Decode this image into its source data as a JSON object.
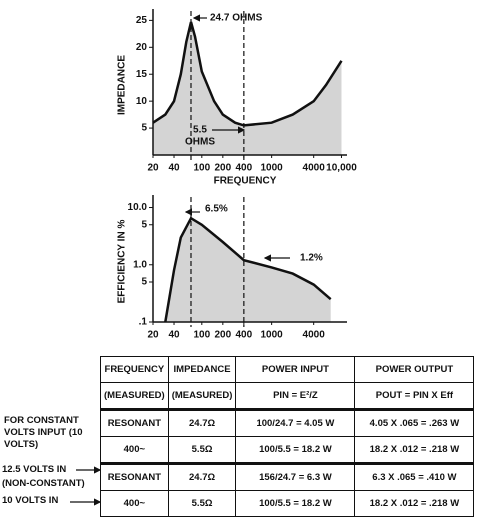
{
  "chart_data": [
    {
      "type": "line",
      "y_label": "IMPEDANCE",
      "x_label": "FREQUENCY",
      "log_x": true,
      "log_y": false,
      "xlim": [
        20,
        12000
      ],
      "ylim": [
        0,
        26
      ],
      "xticks": [
        20,
        40,
        100,
        200,
        400,
        1000,
        4000,
        {
          "value": 10000,
          "label": "10,000"
        }
      ],
      "yticks": [
        5,
        10,
        15,
        20,
        25
      ],
      "x": [
        20,
        30,
        40,
        50,
        60,
        70,
        80,
        100,
        150,
        200,
        300,
        400,
        1000,
        2000,
        4000,
        6000,
        10000
      ],
      "values": [
        6,
        7.5,
        10,
        15,
        21,
        24.7,
        22,
        15.5,
        10,
        7.5,
        6,
        5.5,
        6,
        7.5,
        10,
        13,
        17.5
      ],
      "color": "#111111",
      "fill": "#d4d4d4",
      "reference_lines_x": [
        70,
        400
      ],
      "annotations": [
        "24.7 OHMS",
        "5.5",
        "OHMS"
      ]
    },
    {
      "type": "line",
      "y_label": "EFFICIENCY IN %",
      "log_x": true,
      "log_y": true,
      "xlim": [
        20,
        12000
      ],
      "ylim": [
        0.1,
        13
      ],
      "xticks": [
        20,
        40,
        100,
        200,
        400,
        1000,
        4000
      ],
      "yticks": [
        {
          "value": 10,
          "label": "10.0"
        },
        5,
        {
          "value": 1,
          "label": "1.0"
        },
        {
          "value": 0.5,
          "label": "5"
        },
        {
          "value": 0.1,
          "label": ".1"
        }
      ],
      "x": [
        30,
        40,
        50,
        70,
        100,
        200,
        400,
        1000,
        2000,
        4000,
        7000
      ],
      "values": [
        0.1,
        0.8,
        3,
        6.5,
        5,
        2.5,
        1.2,
        0.9,
        0.7,
        0.45,
        0.25
      ],
      "color": "#111111",
      "fill": "#d4d4d4",
      "reference_lines_x": [
        70,
        400
      ],
      "annotations": [
        "6.5%",
        "1.2%"
      ]
    }
  ],
  "table": {
    "header": [
      [
        "FREQUENCY",
        "IMPEDANCE",
        "POWER INPUT",
        "POWER OUTPUT"
      ],
      [
        "(MEASURED)",
        "(MEASURED)",
        "PIN = E²/Z",
        "POUT = PIN X Eff"
      ]
    ],
    "rows": [
      [
        "RESONANT",
        "24.7Ω",
        "100/24.7 = 4.05 W",
        "4.05 X .065 = .263 W"
      ],
      [
        "400~",
        "5.5Ω",
        "100/5.5 = 18.2 W",
        "18.2 X .012 = .218 W"
      ],
      [
        "RESONANT",
        "24.7Ω",
        "156/24.7 = 6.3 W",
        "6.3 X .065 = .410 W"
      ],
      [
        "400~",
        "5.5Ω",
        "100/5.5 = 18.2 W",
        "18.2 X .012 = .218 W"
      ]
    ],
    "row_labels": [
      "FOR CONSTANT VOLTS INPUT (10 VOLTS)",
      "12.5 VOLTS IN",
      "(NON-CONSTANT)",
      "10 VOLTS IN"
    ]
  }
}
